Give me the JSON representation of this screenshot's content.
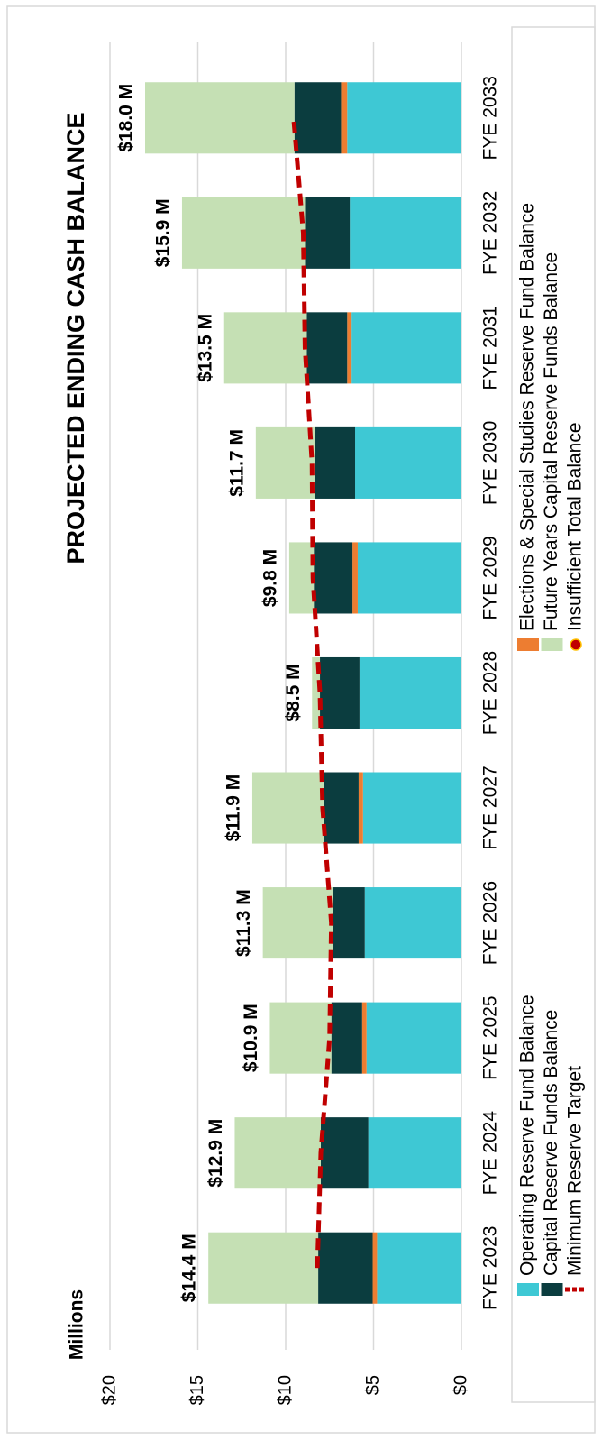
{
  "chart_data": {
    "type": "stacked_bar",
    "title": "PROJECTED ENDING CASH BALANCE",
    "y_label": "Millions",
    "categories": [
      "FYE 2023",
      "FYE 2024",
      "FYE 2025",
      "FYE 2026",
      "FYE 2027",
      "FYE 2028",
      "FYE 2029",
      "FYE 2030",
      "FYE 2031",
      "FYE 2032",
      "FYE 2033"
    ],
    "series": [
      {
        "name": "Operating Reserve Fund Balance",
        "type": "bar",
        "color": "#3ec8d4",
        "values": [
          4.8,
          5.3,
          5.4,
          5.5,
          5.6,
          5.8,
          5.9,
          6.05,
          6.25,
          6.35,
          6.5
        ]
      },
      {
        "name": "Elections & Special Studies Reserve Fund Balance",
        "type": "bar",
        "color": "#ed7d31",
        "values": [
          0.25,
          0,
          0.25,
          0,
          0.25,
          0,
          0.3,
          0,
          0.25,
          0,
          0.35
        ]
      },
      {
        "name": "Capital Reserve Funds Balance",
        "type": "bar",
        "color": "#0b3d3f",
        "values": [
          3.1,
          2.7,
          1.75,
          1.8,
          2.0,
          2.25,
          2.2,
          2.3,
          2.3,
          2.55,
          2.65
        ]
      },
      {
        "name": "Future Years Capital Reserve Funds Balance",
        "type": "bar",
        "color": "#c5e0b4",
        "values": [
          6.25,
          4.9,
          3.5,
          4.0,
          4.05,
          0.45,
          1.4,
          3.35,
          4.7,
          7.0,
          8.5
        ]
      },
      {
        "name": "Minimum Reserve Target",
        "type": "line",
        "color": "#c00000",
        "values": [
          8.2,
          8.0,
          7.5,
          7.4,
          7.9,
          8.05,
          8.45,
          8.5,
          8.9,
          9.0,
          9.55
        ]
      },
      {
        "name": "Insufficient Total Balance",
        "type": "scatter",
        "color": "#c00000",
        "values": [
          null,
          null,
          null,
          null,
          null,
          null,
          null,
          null,
          null,
          null,
          null
        ]
      }
    ],
    "totals": {
      "values": [
        14.4,
        12.9,
        10.9,
        11.3,
        11.9,
        8.5,
        9.8,
        11.7,
        13.5,
        15.9,
        18.0
      ],
      "value_labels": [
        "$14.4 M",
        "$12.9 M",
        "$10.9 M",
        "$11.3 M",
        "$11.9 M",
        "$8.5 M",
        "$9.8 M",
        "$11.7 M",
        "$13.5 M",
        "$15.9 M",
        "$18.0 M"
      ]
    },
    "ylim": [
      0,
      20
    ],
    "yticks": [
      {
        "value": 0,
        "label": "$0"
      },
      {
        "value": 5,
        "label": "$5"
      },
      {
        "value": 10,
        "label": "$10"
      },
      {
        "value": 15,
        "label": "$15"
      },
      {
        "value": 20,
        "label": "$20"
      }
    ],
    "grid": true,
    "legend": "bottom"
  }
}
